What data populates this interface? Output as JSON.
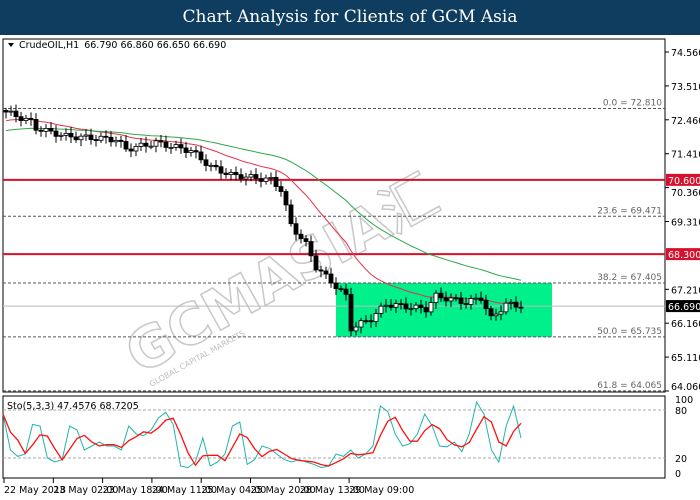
{
  "header": {
    "title": "Chart Analysis for Clients of GCM Asia"
  },
  "chart_data": {
    "type": "candlestick",
    "symbol_label": "CrudeOIL,H1",
    "ohlc_label": "66.790 66.860 66.650 66.690",
    "y_ticks": [
      "74.560",
      "73.510",
      "72.460",
      "71.410",
      "70.360",
      "69.310",
      "67.210",
      "66.160",
      "65.110",
      "64.060"
    ],
    "ylim": [
      64.06,
      74.56
    ],
    "current_price": "66.690",
    "resistance_levels": [
      {
        "value": 70.6,
        "label": "70.600"
      },
      {
        "value": 68.3,
        "label": "68.300"
      }
    ],
    "fibonacci": [
      {
        "value": 72.81,
        "label": "0.0 = 72.810"
      },
      {
        "value": 69.471,
        "label": "23.6 = 69.471"
      },
      {
        "value": 67.405,
        "label": "38.2 = 67.405"
      },
      {
        "value": 65.735,
        "label": "50.0 = 65.735"
      },
      {
        "value": 64.065,
        "label": "61.8 = 64.065"
      }
    ],
    "consolidation_zone": {
      "high": 67.405,
      "low": 65.735,
      "color": "#00f08c"
    },
    "close_waypoints": [
      [
        0,
        72.7
      ],
      [
        5,
        72.4
      ],
      [
        6,
        72.2
      ],
      [
        12,
        71.95
      ],
      [
        22,
        71.85
      ],
      [
        24,
        71.55
      ],
      [
        30,
        71.75
      ],
      [
        37,
        71.5
      ],
      [
        41,
        71.0
      ],
      [
        45,
        70.75
      ],
      [
        53,
        70.6
      ],
      [
        55,
        70.3
      ],
      [
        57,
        69.2
      ],
      [
        60,
        68.6
      ],
      [
        62,
        67.9
      ],
      [
        66,
        67.3
      ],
      [
        68,
        67.0
      ],
      [
        69,
        66.0
      ],
      [
        73,
        66.3
      ],
      [
        76,
        66.75
      ],
      [
        84,
        66.6
      ],
      [
        86,
        67.0
      ],
      [
        92,
        66.8
      ],
      [
        95,
        66.95
      ],
      [
        97,
        66.3
      ],
      [
        100,
        66.75
      ],
      [
        103,
        66.69
      ]
    ],
    "ma_colors": {
      "fast": "#e8304a",
      "slow": "#2ca84a"
    },
    "x_ticks": [
      "22 May 2018",
      "23 May 02:00",
      "23 May 18:00",
      "24 May 11:00",
      "25 May 04:00",
      "25 May 20:00",
      "28 May 13:00",
      "29 May 09:00"
    ],
    "stochastic": {
      "label": "Sto(5,3,3) 47.4576 68.7205",
      "y_ticks": [
        "100",
        "80",
        "20",
        "0"
      ],
      "levels": [
        80,
        20
      ],
      "k": [
        75,
        30,
        22,
        25,
        62,
        60,
        20,
        15,
        18,
        60,
        55,
        30,
        35,
        40,
        35,
        35,
        30,
        60,
        50,
        48,
        55,
        70,
        77,
        62,
        10,
        8,
        15,
        45,
        10,
        15,
        25,
        60,
        65,
        12,
        18,
        35,
        32,
        25,
        18,
        15,
        18,
        15,
        12,
        8,
        10,
        25,
        22,
        30,
        20,
        25,
        35,
        85,
        78,
        50,
        35,
        38,
        50,
        75,
        60,
        35,
        34,
        40,
        28,
        50,
        90,
        75,
        30,
        15,
        60,
        85,
        45
      ],
      "k_color": "#22b5a8",
      "d_color": "#ff1010"
    }
  }
}
